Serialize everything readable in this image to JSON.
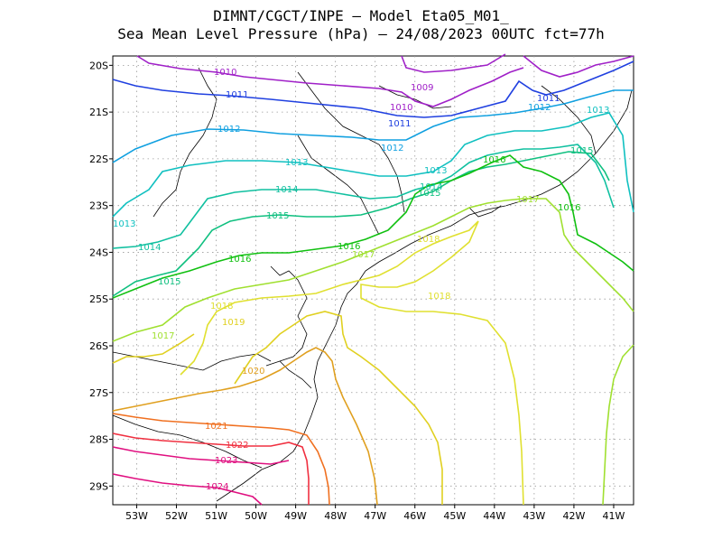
{
  "title": {
    "line1": "DIMNT/CGCT/INPE –  Model Eta05_M01_",
    "line2": "Sea Mean Level Pressure (hPa) – 24/08/2023 00UTC fct=77h"
  },
  "axes": {
    "lon_labels": [
      "53W",
      "52W",
      "51W",
      "50W",
      "49W",
      "48W",
      "47W",
      "46W",
      "45W",
      "44W",
      "43W",
      "42W",
      "41W"
    ],
    "lat_labels": [
      "20S",
      "21S",
      "22S",
      "23S",
      "24S",
      "25S",
      "26S",
      "27S",
      "28S",
      "29S"
    ],
    "lon_range": [
      -53.6,
      -40.5
    ],
    "lat_range": [
      -29.4,
      -19.8
    ]
  },
  "map": {
    "variable": "Sea Mean Level Pressure (hPa)",
    "contour_interval_hpa": 1,
    "isobars": [
      {
        "value": 1009,
        "color": "#a020c8",
        "label": "1009"
      },
      {
        "value": 1010,
        "color": "#a020c8",
        "label": "1010"
      },
      {
        "value": 1011,
        "color": "#2040e0",
        "label": "1011"
      },
      {
        "value": 1012,
        "color": "#10a0e0",
        "label": "1012"
      },
      {
        "value": 1013,
        "color": "#10c0c0",
        "label": "1013"
      },
      {
        "value": 1014,
        "color": "#10c0a0",
        "label": "1014"
      },
      {
        "value": 1015,
        "color": "#10c080",
        "label": "1015"
      },
      {
        "value": 1016,
        "color": "#10c010",
        "label": "1016"
      },
      {
        "value": 1017,
        "color": "#a0e030",
        "label": "1017"
      },
      {
        "value": 1018,
        "color": "#e0e030",
        "label": "1018"
      },
      {
        "value": 1019,
        "color": "#e0d020",
        "label": "1019"
      },
      {
        "value": 1020,
        "color": "#e0a020",
        "label": "1020"
      },
      {
        "value": 1021,
        "color": "#f07020",
        "label": "1021"
      },
      {
        "value": 1022,
        "color": "#f03040",
        "label": "1022"
      },
      {
        "value": 1023,
        "color": "#e01080",
        "label": "1023"
      },
      {
        "value": 1024,
        "color": "#e01080",
        "label": "1024"
      }
    ]
  }
}
